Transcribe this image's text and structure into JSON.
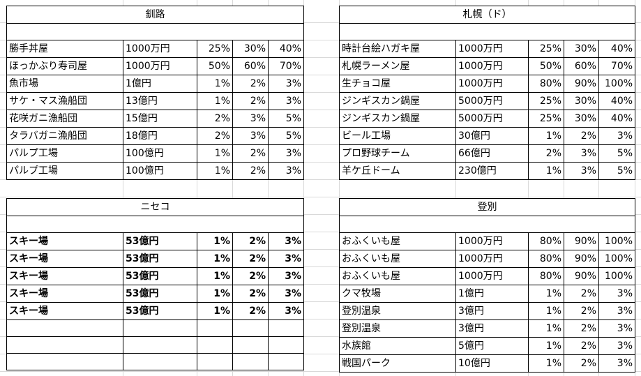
{
  "blocks": [
    {
      "id": "kushiro",
      "title": "釧路",
      "rows": [
        {
          "name": "勝手丼屋",
          "amount": "1000万円",
          "p1": "25%",
          "p2": "30%",
          "p3": "40%"
        },
        {
          "name": "ほっかぶり寿司屋",
          "amount": "1000万円",
          "p1": "50%",
          "p2": "60%",
          "p3": "70%"
        },
        {
          "name": "魚市場",
          "amount": "1億円",
          "p1": "1%",
          "p2": "2%",
          "p3": "3%"
        },
        {
          "name": "サケ・マス漁船団",
          "amount": "13億円",
          "p1": "1%",
          "p2": "2%",
          "p3": "3%"
        },
        {
          "name": "花咲ガニ漁船団",
          "amount": "15億円",
          "p1": "2%",
          "p2": "3%",
          "p3": "5%"
        },
        {
          "name": "タラバガニ漁船団",
          "amount": "18億円",
          "p1": "2%",
          "p2": "3%",
          "p3": "5%"
        },
        {
          "name": "パルプ工場",
          "amount": "100億円",
          "p1": "1%",
          "p2": "2%",
          "p3": "3%"
        },
        {
          "name": "パルプ工場",
          "amount": "100億円",
          "p1": "1%",
          "p2": "2%",
          "p3": "3%"
        }
      ]
    },
    {
      "id": "sapporo",
      "title": "札幌（ド）",
      "rows": [
        {
          "name": "時計台絵ハガキ屋",
          "amount": "1000万円",
          "p1": "25%",
          "p2": "30%",
          "p3": "40%"
        },
        {
          "name": "札幌ラーメン屋",
          "amount": "1000万円",
          "p1": "50%",
          "p2": "60%",
          "p3": "70%"
        },
        {
          "name": "生チョコ屋",
          "amount": "1000万円",
          "p1": "80%",
          "p2": "90%",
          "p3": "100%"
        },
        {
          "name": "ジンギスカン鍋屋",
          "amount": "5000万円",
          "p1": "25%",
          "p2": "30%",
          "p3": "40%"
        },
        {
          "name": "ジンギスカン鍋屋",
          "amount": "5000万円",
          "p1": "25%",
          "p2": "30%",
          "p3": "40%"
        },
        {
          "name": "ビール工場",
          "amount": "30億円",
          "p1": "1%",
          "p2": "2%",
          "p3": "3%"
        },
        {
          "name": "プロ野球チーム",
          "amount": "66億円",
          "p1": "2%",
          "p2": "3%",
          "p3": "5%"
        },
        {
          "name": "羊ケ丘ドーム",
          "amount": "230億円",
          "p1": "1%",
          "p2": "3%",
          "p3": "5%"
        }
      ]
    },
    {
      "id": "niseko",
      "title": "ニセコ",
      "bold": true,
      "rows": [
        {
          "name": "スキー場",
          "amount": "53億円",
          "p1": "1%",
          "p2": "2%",
          "p3": "3%"
        },
        {
          "name": "スキー場",
          "amount": "53億円",
          "p1": "1%",
          "p2": "2%",
          "p3": "3%"
        },
        {
          "name": "スキー場",
          "amount": "53億円",
          "p1": "1%",
          "p2": "2%",
          "p3": "3%"
        },
        {
          "name": "スキー場",
          "amount": "53億円",
          "p1": "1%",
          "p2": "2%",
          "p3": "3%"
        },
        {
          "name": "スキー場",
          "amount": "53億円",
          "p1": "1%",
          "p2": "2%",
          "p3": "3%"
        },
        {
          "name": "",
          "amount": "",
          "p1": "",
          "p2": "",
          "p3": ""
        },
        {
          "name": "",
          "amount": "",
          "p1": "",
          "p2": "",
          "p3": ""
        },
        {
          "name": "",
          "amount": "",
          "p1": "",
          "p2": "",
          "p3": ""
        }
      ]
    },
    {
      "id": "noboribetsu",
      "title": "登別",
      "rows": [
        {
          "name": "おふくいも屋",
          "amount": "1000万円",
          "p1": "80%",
          "p2": "90%",
          "p3": "100%"
        },
        {
          "name": "おふくいも屋",
          "amount": "1000万円",
          "p1": "80%",
          "p2": "90%",
          "p3": "100%"
        },
        {
          "name": "おふくいも屋",
          "amount": "1000万円",
          "p1": "80%",
          "p2": "90%",
          "p3": "100%"
        },
        {
          "name": "クマ牧場",
          "amount": "1億円",
          "p1": "1%",
          "p2": "2%",
          "p3": "3%"
        },
        {
          "name": "登別温泉",
          "amount": "3億円",
          "p1": "1%",
          "p2": "2%",
          "p3": "3%"
        },
        {
          "name": "登別温泉",
          "amount": "3億円",
          "p1": "1%",
          "p2": "2%",
          "p3": "3%"
        },
        {
          "name": "水族館",
          "amount": "5億円",
          "p1": "1%",
          "p2": "2%",
          "p3": "3%"
        },
        {
          "name": "戦国パーク",
          "amount": "10億円",
          "p1": "1%",
          "p2": "2%",
          "p3": "3%"
        }
      ]
    }
  ]
}
